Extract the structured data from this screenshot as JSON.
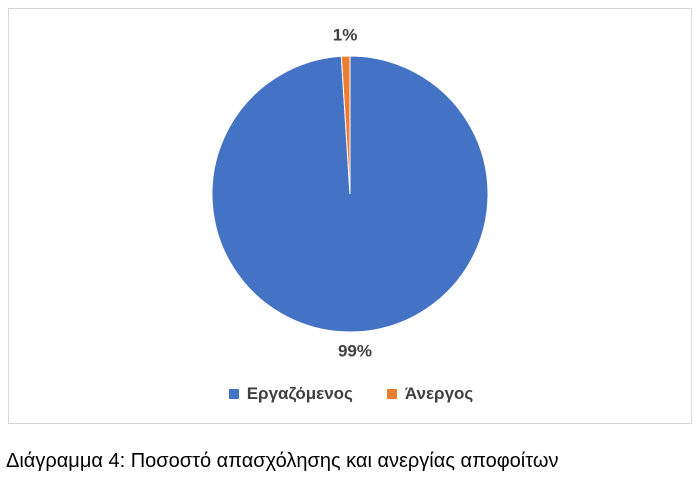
{
  "chart_data": {
    "type": "pie",
    "slices": [
      {
        "label": "Εργαζόμενος",
        "value": 99,
        "data_label": "99%",
        "color": "#4472C4"
      },
      {
        "label": "Άνεργος",
        "value": 1,
        "data_label": "1%",
        "color": "#ED7D31"
      }
    ],
    "legend": [
      "Εργαζόμενος",
      "Άνεργος"
    ],
    "legend_position": "bottom",
    "start_angle_deg": 0
  },
  "caption": "Διάγραμμα 4: Ποσοστό απασχόλησης και ανεργίας αποφοίτων"
}
